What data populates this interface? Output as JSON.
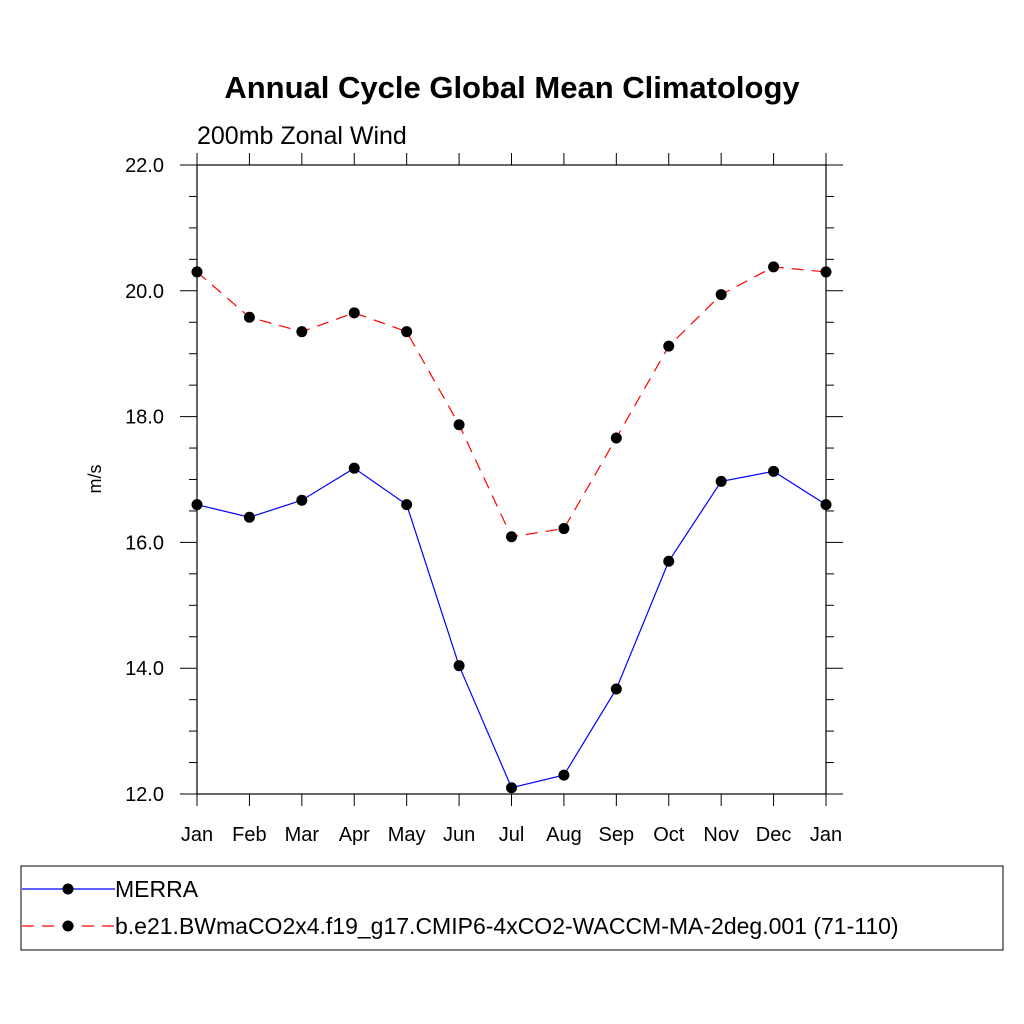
{
  "chart_data": {
    "type": "line",
    "title": "Annual Cycle Global Mean Climatology",
    "subtitle": "200mb Zonal Wind",
    "xlabel": "",
    "ylabel": "m/s",
    "categories": [
      "Jan",
      "Feb",
      "Mar",
      "Apr",
      "May",
      "Jun",
      "Jul",
      "Aug",
      "Sep",
      "Oct",
      "Nov",
      "Dec",
      "Jan"
    ],
    "ylim": [
      12.0,
      22.0
    ],
    "yticks": [
      "12.0",
      "14.0",
      "16.0",
      "18.0",
      "20.0",
      "22.0"
    ],
    "grid": false,
    "legend_position": "bottom",
    "series": [
      {
        "name": "MERRA",
        "color": "#0000ff",
        "line_style": "solid",
        "marker": "filled-circle",
        "values": [
          16.6,
          16.4,
          16.67,
          17.18,
          16.6,
          14.04,
          12.1,
          12.3,
          13.67,
          15.7,
          16.97,
          17.13,
          16.6
        ]
      },
      {
        "name": "b.e21.BWmaCO2x4.f19_g17.CMIP6-4xCO2-WACCM-MA-2deg.001 (71-110)",
        "color": "#ff0000",
        "line_style": "dashed",
        "marker": "filled-circle",
        "values": [
          20.3,
          19.58,
          19.35,
          19.65,
          19.35,
          17.87,
          16.09,
          16.22,
          17.66,
          19.12,
          19.94,
          20.38,
          20.3
        ]
      }
    ]
  }
}
